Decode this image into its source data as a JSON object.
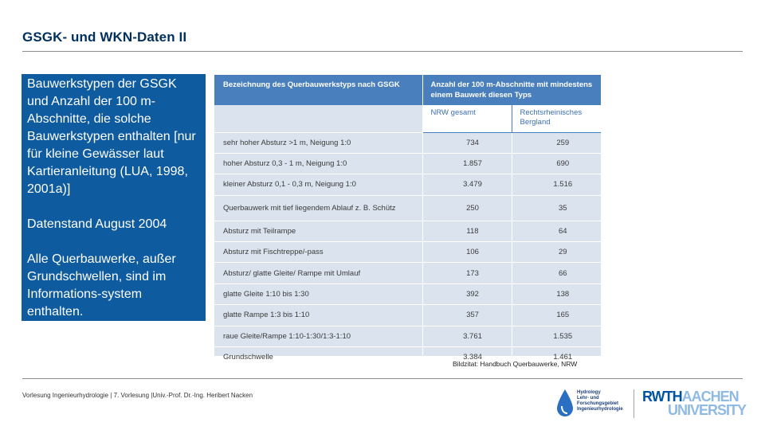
{
  "slide": {
    "title": "GSGK- und WKN-Daten II",
    "caption": "Bildzitat: Handbuch Querbauwerke, NRW",
    "footer": "Vorlesung Ingenieurhydrologie | 7. Vorlesung |Univ.-Prof. Dr.-Ing. Heribert Nacken"
  },
  "info_box": {
    "paragraph1": "Bauwerkstypen der GSGK und Anzahl der 100 m-Abschnitte, die solche Bauwerkstypen enthalten [nur für kleine Gewässer laut Kartieranleitung (LUA, 1998, 2001a)]",
    "paragraph2": "Datenstand August 2004",
    "paragraph3": "Alle Querbauwerke, außer Grundschwellen, sind im Informations-system  enthalten."
  },
  "table": {
    "header_name": "Bezeichnung des Querbauwerkstyps nach GSGK",
    "header_count": "Anzahl der 100 m-Abschnitte mit mindestens einem Bauwerk diesen Typs",
    "col1": "NRW gesamt",
    "col2": "Rechtsrheinisches Bergland",
    "rows": [
      {
        "name": "sehr hoher Absturz >1 m, Neigung 1:0",
        "nrw": "734",
        "berg": "259"
      },
      {
        "name": "hoher Absturz 0,3 - 1 m, Neigung 1:0",
        "nrw": "1.857",
        "berg": "690"
      },
      {
        "name": "kleiner Absturz 0,1 - 0,3 m, Neigung 1:0",
        "nrw": "3.479",
        "berg": "1.516"
      },
      {
        "name": "Querbauwerk mit tief liegendem Ablauf z. B. Schütz",
        "nrw": "250",
        "berg": "35"
      },
      {
        "name": "Absturz mit Teilrampe",
        "nrw": "118",
        "berg": "64"
      },
      {
        "name": "Absturz mit Fischtreppe/-pass",
        "nrw": "106",
        "berg": "29"
      },
      {
        "name": "Absturz/ glatte Gleite/ Rampe mit Umlauf",
        "nrw": "173",
        "berg": "66"
      },
      {
        "name": "glatte Gleite 1:10 bis 1:30",
        "nrw": "392",
        "berg": "138"
      },
      {
        "name": "glatte Rampe 1:3 bis 1:10",
        "nrw": "357",
        "berg": "165"
      },
      {
        "name": "raue Gleite/Rampe 1:10-1:30/1:3-1:10",
        "nrw": "3.761",
        "berg": "1.535"
      },
      {
        "name": "Grundschwelle",
        "nrw": "3.384",
        "berg": "1.461"
      }
    ]
  },
  "logos": {
    "institute_line1": "Hydrology",
    "institute_line2": "Lehr- und",
    "institute_line3": "Forschungsgebiet",
    "institute_line4": "Ingenieurhydrologie",
    "rwth_part1": "RWTH",
    "rwth_part2": "AACHEN",
    "rwth_part3": "UNIVERSITY"
  },
  "colors": {
    "title": "#00305e",
    "info_box_bg": "#0e5ba0",
    "table_header": "#4a7fbd",
    "table_body": "#dbe4ee",
    "rwth_dark": "#00549f",
    "rwth_light": "#8ebae5"
  }
}
